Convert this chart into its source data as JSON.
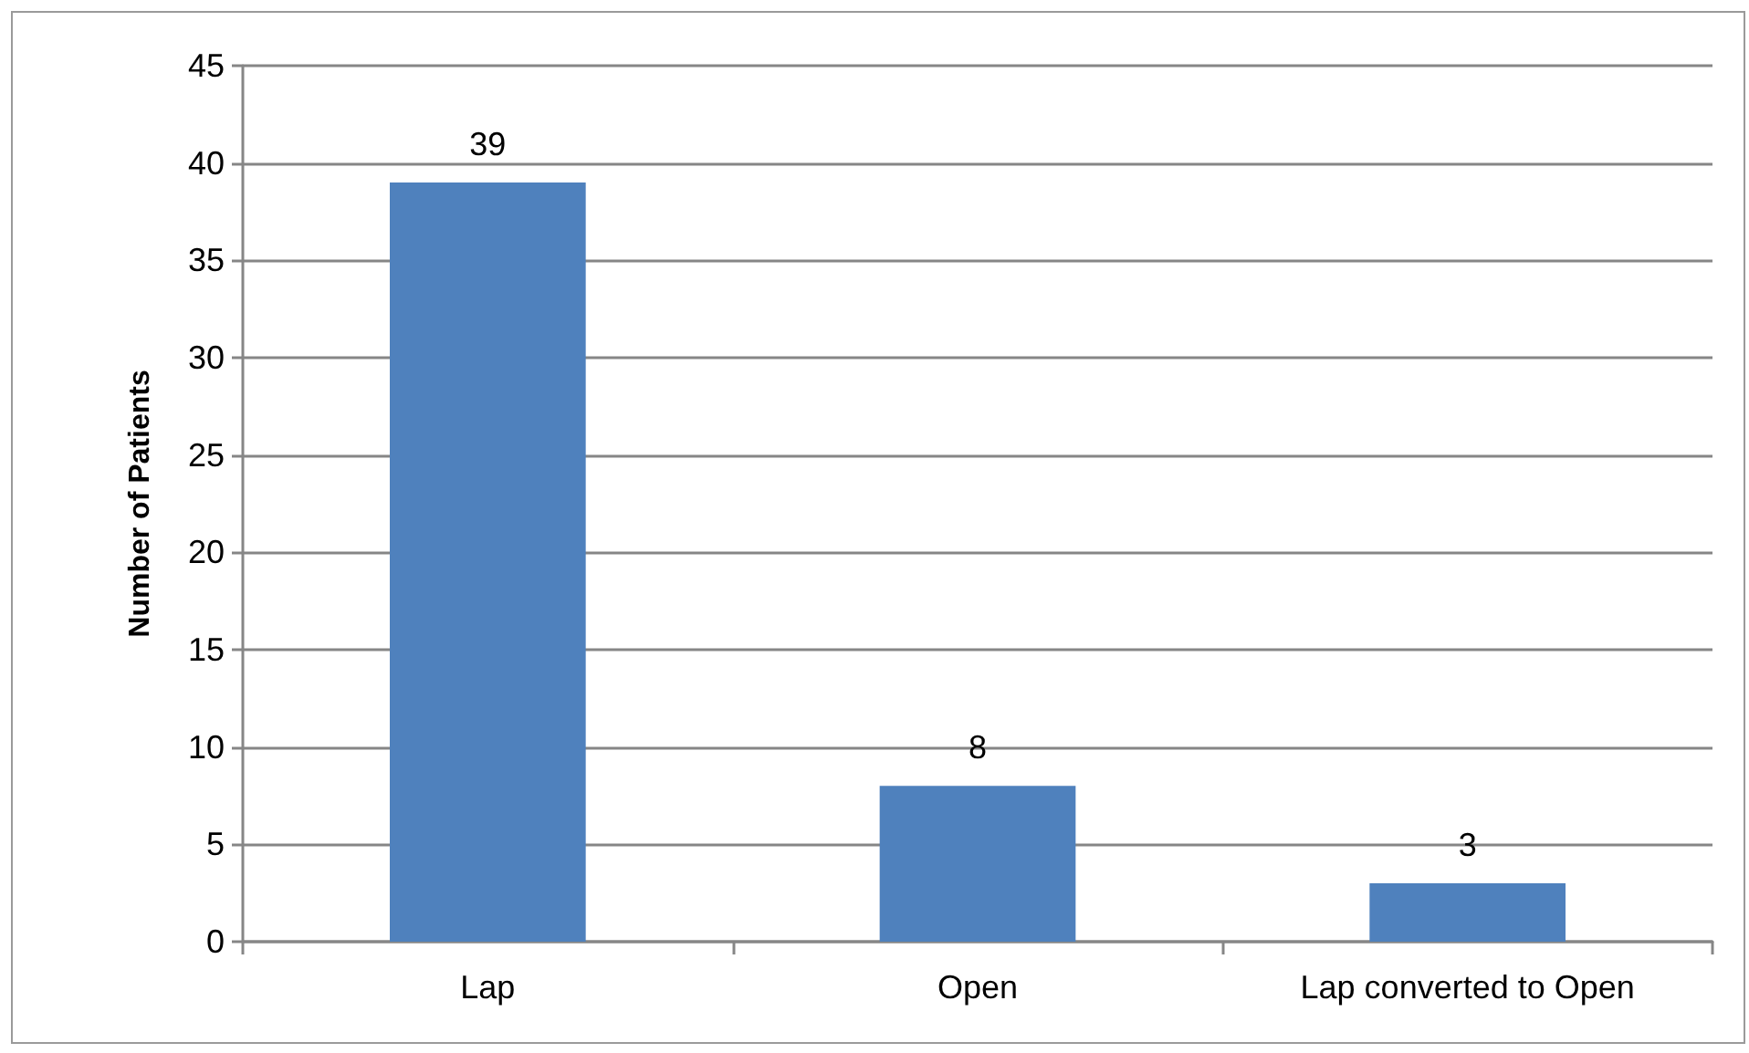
{
  "chart_data": {
    "type": "bar",
    "ylabel": "Number of Patients",
    "categories": [
      "Lap",
      "Open",
      "Lap converted to Open"
    ],
    "values": [
      39,
      8,
      3
    ],
    "color": "#4f81bd",
    "ylim": [
      0,
      45
    ],
    "yticks": [
      0,
      5,
      10,
      15,
      20,
      25,
      30,
      35,
      40,
      45
    ],
    "grid": "y",
    "data_labels": true
  }
}
